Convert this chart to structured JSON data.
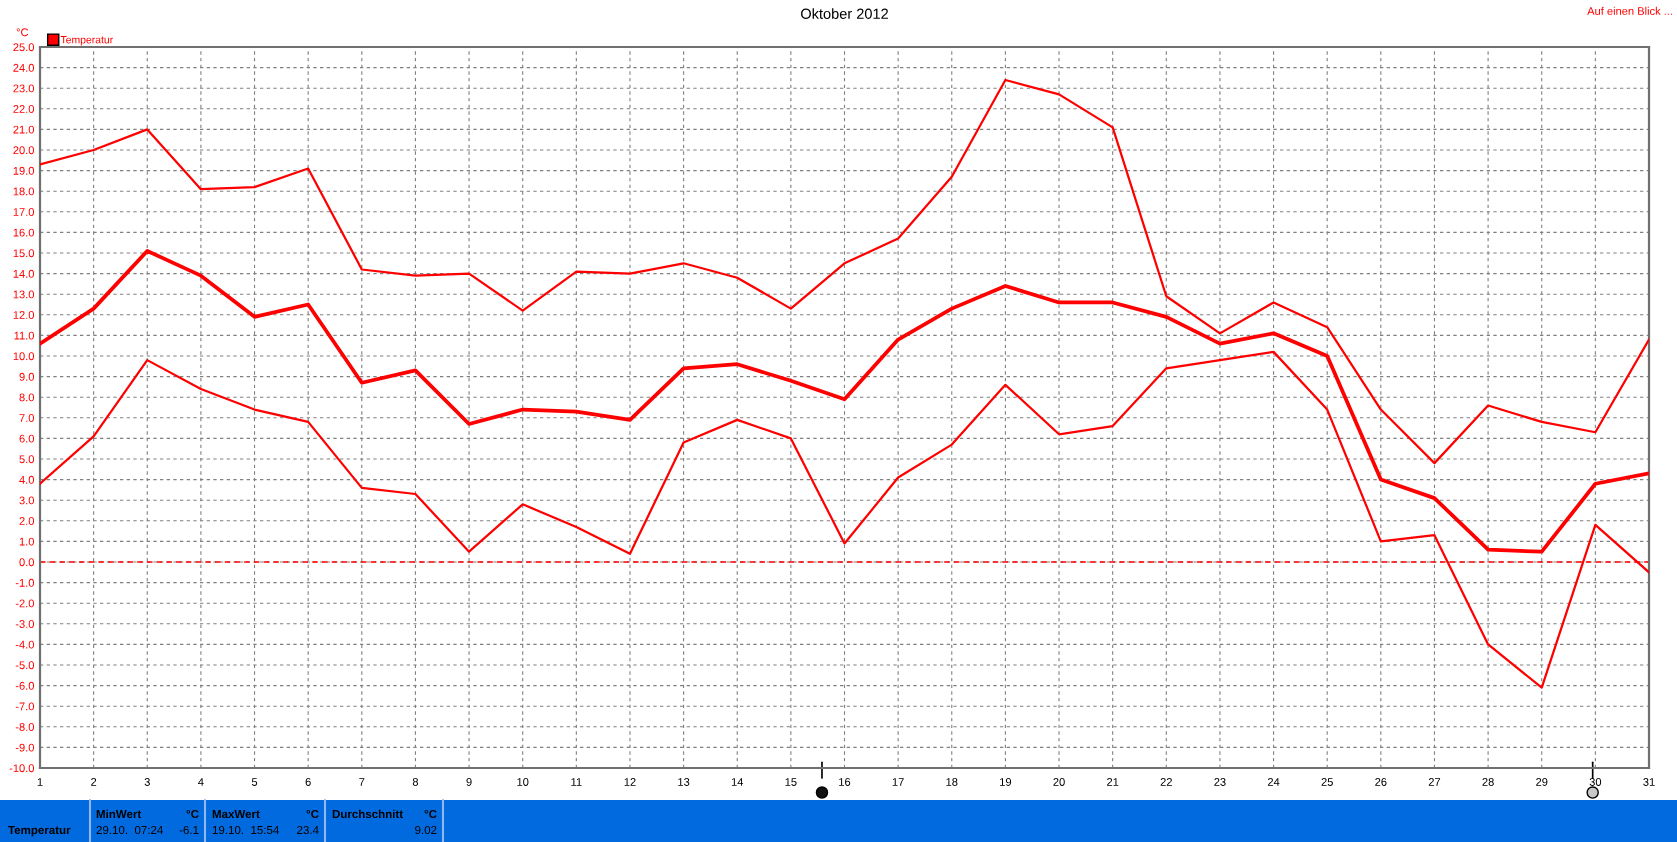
{
  "chart_data": {
    "type": "line",
    "title": "Oktober 2012",
    "ylabel": "°C",
    "x": [
      1,
      2,
      3,
      4,
      5,
      6,
      7,
      8,
      9,
      10,
      11,
      12,
      13,
      14,
      15,
      16,
      17,
      18,
      19,
      20,
      21,
      22,
      23,
      24,
      25,
      26,
      27,
      28,
      29,
      30,
      31
    ],
    "series": [
      {
        "color": "#ff0000",
        "values": [
          19.3,
          20.0,
          21.0,
          18.1,
          18.2,
          19.1,
          14.2,
          13.9,
          14.0,
          12.2,
          14.1,
          14.0,
          14.5,
          13.8,
          12.3,
          14.5,
          15.7,
          18.7,
          23.4,
          22.7,
          21.1,
          12.9,
          11.1,
          12.6,
          11.4,
          7.4,
          4.8,
          7.6,
          6.8,
          6.3,
          10.8
        ]
      },
      {
        "name": "Temperatur",
        "color": "#ff0000",
        "values": [
          10.6,
          12.3,
          15.1,
          13.9,
          11.9,
          12.5,
          8.7,
          9.3,
          6.7,
          7.4,
          7.3,
          6.9,
          9.4,
          9.6,
          8.8,
          7.9,
          10.8,
          12.3,
          13.4,
          12.6,
          12.6,
          11.9,
          10.6,
          11.1,
          10.0,
          4.0,
          3.1,
          0.6,
          0.5,
          3.8,
          4.3
        ]
      },
      {
        "color": "#ff0000",
        "values": [
          3.8,
          6.1,
          9.8,
          8.4,
          7.4,
          6.8,
          3.6,
          3.3,
          0.5,
          2.8,
          1.7,
          0.4,
          5.8,
          6.9,
          6.0,
          0.9,
          4.1,
          5.7,
          8.6,
          6.2,
          6.6,
          9.4,
          9.8,
          10.2,
          7.4,
          1.0,
          1.3,
          -4.0,
          -6.1,
          1.8,
          -0.5
        ]
      }
    ],
    "xlim": [
      1,
      31
    ],
    "xticks": [
      1,
      2,
      3,
      4,
      5,
      6,
      7,
      8,
      9,
      10,
      11,
      12,
      13,
      14,
      15,
      16,
      17,
      18,
      19,
      20,
      21,
      22,
      23,
      24,
      25,
      26,
      27,
      28,
      29,
      30,
      31
    ],
    "ylim": [
      -10,
      25
    ],
    "yticks": [
      {
        "value": -10,
        "label": "-10.0"
      },
      {
        "value": -9,
        "label": "-9.0"
      },
      {
        "value": -8,
        "label": "-8.0"
      },
      {
        "value": -7,
        "label": "-7.0"
      },
      {
        "value": -6,
        "label": "-6.0"
      },
      {
        "value": -5,
        "label": "-5.0"
      },
      {
        "value": -4,
        "label": "-4.0"
      },
      {
        "value": -3,
        "label": "-3.0"
      },
      {
        "value": -2,
        "label": "-2.0"
      },
      {
        "value": -1,
        "label": "-1.0"
      },
      {
        "value": 0,
        "label": "0.0"
      },
      {
        "value": 1,
        "label": "1.0"
      },
      {
        "value": 2,
        "label": "2.0"
      },
      {
        "value": 3,
        "label": "3.0"
      },
      {
        "value": 4,
        "label": "4.0"
      },
      {
        "value": 5,
        "label": "5.0"
      },
      {
        "value": 6,
        "label": "6.0"
      },
      {
        "value": 7,
        "label": "7.0"
      },
      {
        "value": 8,
        "label": "8.0"
      },
      {
        "value": 9,
        "label": "9.0"
      },
      {
        "value": 10,
        "label": "10.0"
      },
      {
        "value": 11,
        "label": "11.0"
      },
      {
        "value": 12,
        "label": "12.0"
      },
      {
        "value": 13,
        "label": "13.0"
      },
      {
        "value": 14,
        "label": "14.0"
      },
      {
        "value": 15,
        "label": "15.0"
      },
      {
        "value": 16,
        "label": "16.0"
      },
      {
        "value": 17,
        "label": "17.0"
      },
      {
        "value": 18,
        "label": "18.0"
      },
      {
        "value": 19,
        "label": "19.0"
      },
      {
        "value": 20,
        "label": "20.0"
      },
      {
        "value": 21,
        "label": "21.0"
      },
      {
        "value": 22,
        "label": "22.0"
      },
      {
        "value": 23,
        "label": "23.0"
      },
      {
        "value": 24,
        "label": "24.0"
      },
      {
        "value": 25,
        "label": "25.0"
      }
    ],
    "grid": true,
    "legend": "top left",
    "marker": "none",
    "line_style": "solid",
    "ref_lines": [
      {
        "axis": "y",
        "value": 0,
        "color": "#ff0000",
        "line_style": "dashed"
      }
    ],
    "annotations": [
      "Auf einen Blick ...",
      "Temperatur",
      "MinWert",
      "°C",
      "29.10.  07:24",
      "-6.1",
      "MaxWert",
      "°C",
      "19.10.  15:54",
      "23.4",
      "Durchschnitt",
      "°C",
      "9.02"
    ]
  }
}
